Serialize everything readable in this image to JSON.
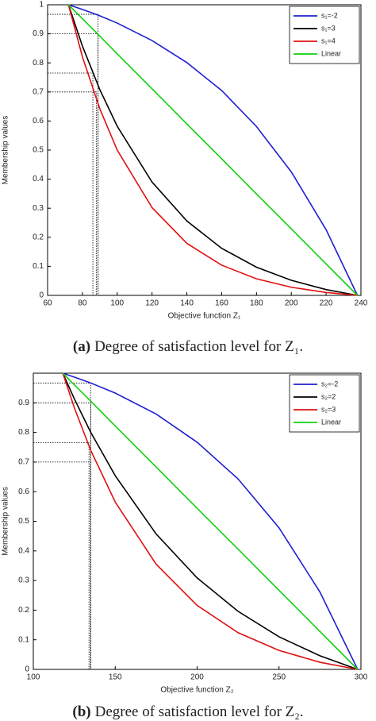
{
  "chart_data": [
    {
      "type": "line",
      "caption_label": "(a)",
      "caption": "Degree of satisfaction level for Z₁.",
      "xlabel": "Objective function Z₁",
      "ylabel": "Membership values",
      "xlim": [
        60,
        240
      ],
      "xticks": [
        60,
        80,
        100,
        120,
        140,
        160,
        180,
        200,
        220,
        240
      ],
      "ylim": [
        0,
        1
      ],
      "yticks": [
        0,
        0.1,
        0.2,
        0.3,
        0.4,
        0.5,
        0.6,
        0.7,
        0.8,
        0.9,
        1
      ],
      "legend": "upper right",
      "x": [
        72,
        80,
        90,
        100,
        120,
        140,
        160,
        180,
        200,
        220,
        238
      ],
      "series": [
        {
          "name": "s₁=-2",
          "color": "#1f1fd0",
          "values": [
            1,
            0.984,
            0.962,
            0.937,
            0.877,
            0.801,
            0.705,
            0.581,
            0.425,
            0.226,
            0
          ]
        },
        {
          "name": "s₁=3",
          "color": "#000000",
          "values": [
            1,
            0.858,
            0.708,
            0.582,
            0.39,
            0.256,
            0.162,
            0.097,
            0.052,
            0.02,
            0
          ]
        },
        {
          "name": "s₁=4",
          "color": "#e01010",
          "values": [
            1,
            0.821,
            0.642,
            0.5,
            0.302,
            0.179,
            0.104,
            0.057,
            0.028,
            0.01,
            0
          ]
        },
        {
          "name": "Linear",
          "color": "#10d010",
          "values": [
            1,
            0.952,
            0.892,
            0.831,
            0.711,
            0.59,
            0.47,
            0.349,
            0.229,
            0.108,
            0
          ]
        }
      ],
      "reference_points": [
        {
          "x": 89,
          "y": 0.967
        },
        {
          "x": 89,
          "y": 0.9
        },
        {
          "x": 86,
          "y": 0.765
        },
        {
          "x": 88,
          "y": 0.7
        }
      ]
    },
    {
      "type": "line",
      "caption_label": "(b)",
      "caption": "Degree of satisfaction level for Z₂.",
      "xlabel": "Objective function Z₂",
      "ylabel": "Membership values",
      "xlim": [
        100,
        300
      ],
      "xticks": [
        100,
        150,
        200,
        250,
        300
      ],
      "ylim": [
        0,
        1
      ],
      "yticks": [
        0,
        0.1,
        0.2,
        0.3,
        0.4,
        0.5,
        0.6,
        0.7,
        0.8,
        0.9
      ],
      "legend": "upper right",
      "x": [
        118,
        125,
        135,
        150,
        175,
        200,
        225,
        250,
        275,
        298
      ],
      "series": [
        {
          "name": "s₂=-2",
          "color": "#1f1fd0",
          "values": [
            1,
            0.987,
            0.967,
            0.933,
            0.862,
            0.767,
            0.643,
            0.478,
            0.261,
            0
          ]
        },
        {
          "name": "s₂=2",
          "color": "#000000",
          "values": [
            1,
            0.914,
            0.801,
            0.654,
            0.457,
            0.309,
            0.196,
            0.11,
            0.046,
            0
          ]
        },
        {
          "name": "s₂=3",
          "color": "#e01010",
          "values": [
            1,
            0.884,
            0.74,
            0.565,
            0.355,
            0.216,
            0.124,
            0.064,
            0.024,
            0
          ]
        },
        {
          "name": "Linear",
          "color": "#10d010",
          "values": [
            1,
            0.961,
            0.906,
            0.822,
            0.683,
            0.544,
            0.406,
            0.267,
            0.128,
            0
          ]
        }
      ],
      "reference_points": [
        {
          "x": 135,
          "y": 0.967
        },
        {
          "x": 135,
          "y": 0.9
        },
        {
          "x": 134,
          "y": 0.765
        },
        {
          "x": 135,
          "y": 0.7
        }
      ]
    }
  ]
}
